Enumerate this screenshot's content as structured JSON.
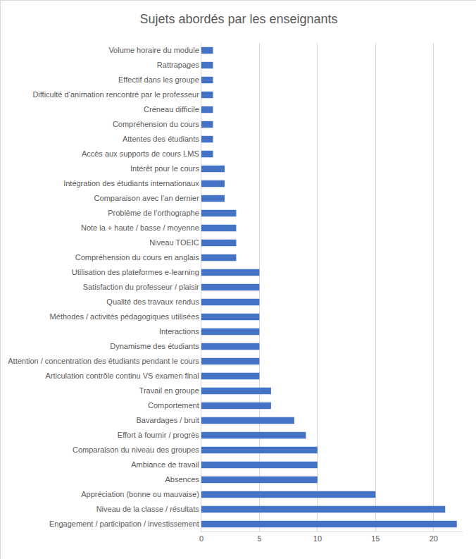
{
  "chart_data": {
    "type": "bar",
    "orientation": "horizontal",
    "title": "Sujets abordés par les enseignants",
    "categories": [
      "Engagement / participation / investissement",
      "Niveau de la classe / résultats",
      "Appréciation (bonne ou mauvaise)",
      "Absences",
      "Ambiance de travail",
      "Comparaison du niveau des groupes",
      "Effort à fournir / progrès",
      "Bavardages / bruit",
      "Comportement",
      "Travail en groupe",
      "Articulation contrôle continu VS examen final",
      "Attention / concentration des étudiants pendant le cours",
      "Dynamisme des étudiants",
      "Interactions",
      "Méthodes / activités pédagogiques utilisées",
      "Qualité des travaux rendus",
      "Satisfaction du professeur / plaisir",
      "Utilisation des plateformes e-learning",
      "Compréhension du cours en anglais",
      "Niveau TOEIC",
      "Note la + haute / basse / moyenne",
      "Problème de l’orthographe",
      "Comparaison avec l’an dernier",
      "Intégration des étudiants internationaux",
      "Intérêt pour le cours",
      "Accès aux supports de cours LMS",
      "Attentes des étudiants",
      "Compréhension du cours",
      "Créneau difficile",
      "Difficulté d’animation rencontré par le professeur",
      "Effectif dans les groupe",
      "Rattrapages",
      "Volume horaire du module"
    ],
    "values": [
      22,
      21,
      15,
      10,
      10,
      10,
      9,
      8,
      6,
      6,
      5,
      5,
      5,
      5,
      5,
      5,
      5,
      5,
      3,
      3,
      3,
      3,
      2,
      2,
      2,
      1,
      1,
      1,
      1,
      1,
      1,
      1,
      1
    ],
    "color": "#4472c4",
    "xlim": [
      0,
      22.5
    ],
    "xticks": [
      0,
      5,
      10,
      15,
      20
    ],
    "grid": true
  }
}
